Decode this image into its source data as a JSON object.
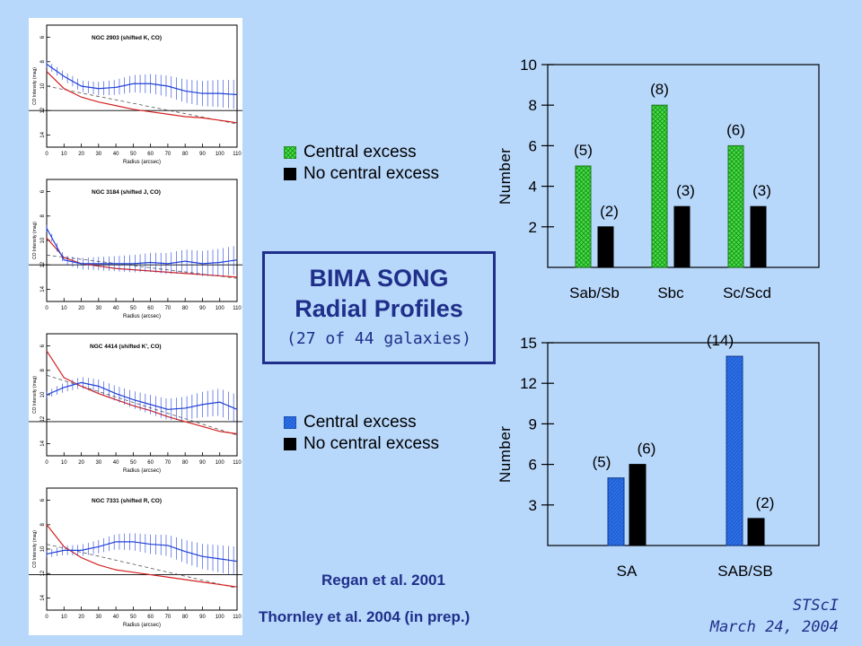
{
  "title": {
    "line1": "BIMA SONG",
    "line2": "Radial Profiles",
    "subtitle": "(27 of 44 galaxies)"
  },
  "credits": {
    "regan": "Regan et al. 2001",
    "thornley": "Thornley et al. 2004 (in prep.)"
  },
  "stamp": {
    "org": "STScI",
    "date": "March 24, 2004"
  },
  "legends": [
    {
      "items": [
        {
          "label": "Central excess",
          "color": "#44e044",
          "pattern": "crosshatch"
        },
        {
          "label": "No central excess",
          "color": "#000000"
        }
      ]
    },
    {
      "items": [
        {
          "label": "Central excess",
          "color": "#2b6fe8",
          "pattern": "hatch"
        },
        {
          "label": "No central excess",
          "color": "#000000"
        }
      ]
    }
  ],
  "profiles": [
    {
      "label": "NGC 2903 (shifted K, CO)"
    },
    {
      "label": "NGC 3184 (shifted J, CO)"
    },
    {
      "label": "NGC 4414 (shifted K', CO)"
    },
    {
      "label": "NGC 7331 (shifted R, CO)"
    }
  ],
  "profile_axes": {
    "ylabel": "CO Intensity (mag)",
    "xlabel": "Radius (arcsec)",
    "yticks": [
      "6",
      "8",
      "10",
      "12",
      "14"
    ],
    "xticks": [
      "0",
      "10",
      "20",
      "30",
      "40",
      "50",
      "60",
      "70",
      "80",
      "90",
      "100",
      "110"
    ]
  },
  "chart_data": [
    {
      "type": "bar",
      "categories": [
        "Sab/Sb",
        "Sbc",
        "Sc/Scd"
      ],
      "series": [
        {
          "name": "Central excess",
          "values": [
            5,
            8,
            6
          ],
          "color": "#44e044"
        },
        {
          "name": "No central excess",
          "values": [
            2,
            3,
            3
          ],
          "color": "#000000"
        }
      ],
      "data_labels": [
        [
          "(5)",
          "(8)",
          "(6)"
        ],
        [
          "(2)",
          "(3)",
          "(3)"
        ]
      ],
      "ylabel": "Number",
      "ylim": [
        0,
        10
      ],
      "yticks": [
        2,
        4,
        6,
        8,
        10
      ]
    },
    {
      "type": "bar",
      "categories": [
        "SA",
        "SAB/SB"
      ],
      "series": [
        {
          "name": "Central excess",
          "values": [
            5,
            14
          ],
          "color": "#2b6fe8"
        },
        {
          "name": "No central excess",
          "values": [
            6,
            2
          ],
          "color": "#000000"
        }
      ],
      "data_labels": [
        [
          "(5)",
          "(14)"
        ],
        [
          "(6)",
          "(2)"
        ]
      ],
      "ylabel": "Number",
      "ylim": [
        0,
        15
      ],
      "yticks": [
        3,
        6,
        9,
        12,
        15
      ]
    }
  ]
}
